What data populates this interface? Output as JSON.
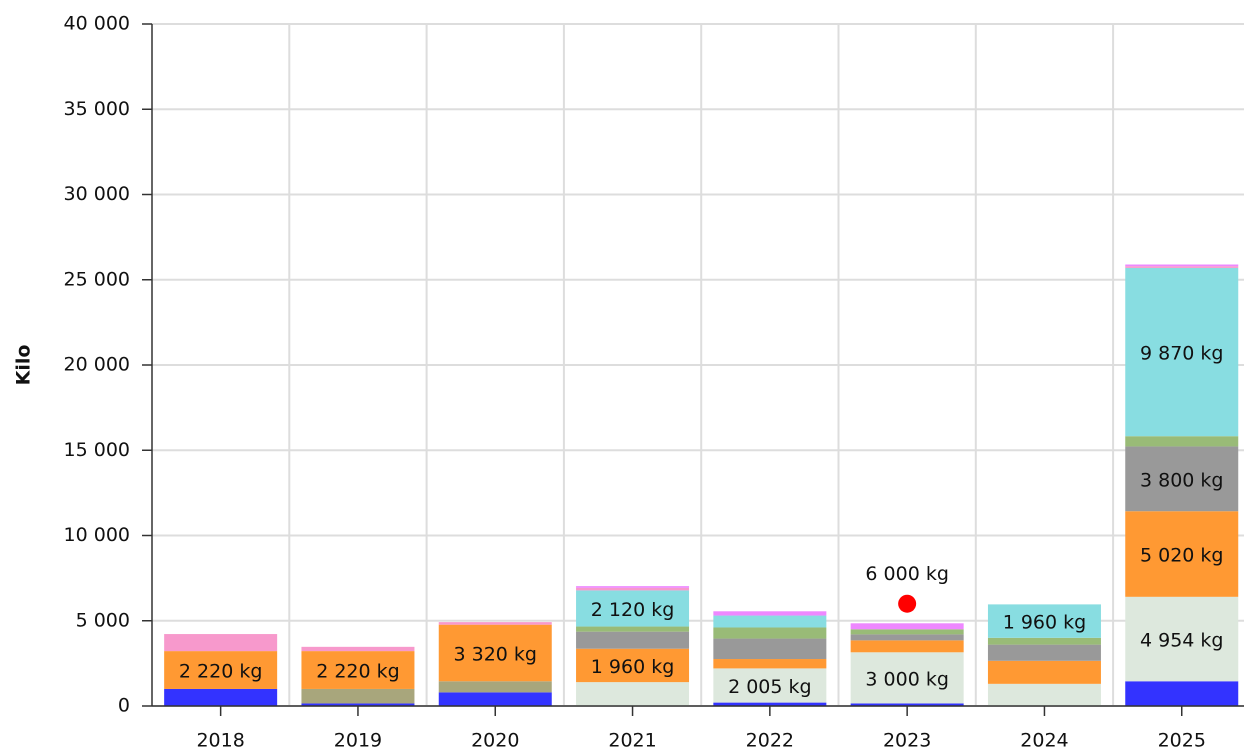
{
  "chart_data": {
    "type": "stacked-bar",
    "y_label": "Kilo",
    "categories": [
      "2018",
      "2019",
      "2020",
      "2021",
      "2022",
      "2023",
      "2024",
      "2025"
    ],
    "ylim": [
      0,
      40000
    ],
    "yticks": [
      0,
      {
        "value": 5000,
        "label": "5 000"
      },
      {
        "value": 10000,
        "label": "10 000"
      },
      {
        "value": 15000,
        "label": "15 000"
      },
      {
        "value": 20000,
        "label": "20 000"
      },
      {
        "value": 25000,
        "label": "25 000"
      },
      {
        "value": 30000,
        "label": "30 000"
      },
      {
        "value": 35000,
        "label": "35 000"
      },
      {
        "value": 40000,
        "label": "40 000"
      }
    ],
    "grid": true,
    "series": [
      {
        "color": "#3333ff",
        "values": [
          1000,
          150,
          800,
          0,
          200,
          150,
          0,
          1450
        ],
        "value_labels": [
          null,
          null,
          null,
          null,
          null,
          null,
          null,
          null
        ]
      },
      {
        "color": "#dde8dd",
        "values": [
          0,
          0,
          0,
          1400,
          2005,
          3000,
          1300,
          4954
        ],
        "value_labels": [
          null,
          null,
          null,
          null,
          "2 005 kg",
          "3 000 kg",
          null,
          "4 954 kg"
        ]
      },
      {
        "color": "#a8a67c",
        "values": [
          0,
          850,
          650,
          0,
          0,
          0,
          0,
          0
        ],
        "value_labels": [
          null,
          null,
          null,
          null,
          null,
          null,
          null,
          null
        ]
      },
      {
        "color": "#ff9933",
        "values": [
          2220,
          2220,
          3320,
          1960,
          550,
          700,
          1350,
          5020
        ],
        "value_labels": [
          "2 220 kg",
          "2 220 kg",
          "3 320 kg",
          "1 960 kg",
          null,
          null,
          null,
          "5 020 kg"
        ]
      },
      {
        "color": "#999999",
        "values": [
          0,
          0,
          0,
          1000,
          1200,
          350,
          950,
          3800
        ],
        "value_labels": [
          null,
          null,
          null,
          null,
          null,
          null,
          null,
          "3 800 kg"
        ]
      },
      {
        "color": "#99bb77",
        "values": [
          0,
          0,
          0,
          300,
          650,
          300,
          400,
          600
        ],
        "value_labels": [
          null,
          null,
          null,
          null,
          null,
          null,
          null,
          null
        ]
      },
      {
        "color": "#88dde1",
        "values": [
          0,
          0,
          0,
          2120,
          700,
          0,
          1960,
          9870
        ],
        "value_labels": [
          null,
          null,
          null,
          "2 120 kg",
          null,
          null,
          "1 960 kg",
          "9 870 kg"
        ]
      },
      {
        "color": "#f799cc",
        "values": [
          1000,
          250,
          150,
          150,
          0,
          0,
          0,
          100
        ],
        "value_labels": [
          null,
          null,
          null,
          null,
          null,
          null,
          null,
          null
        ]
      },
      {
        "color": "#ee88ff",
        "values": [
          0,
          0,
          0,
          100,
          250,
          350,
          0,
          100
        ],
        "value_labels": [
          null,
          null,
          null,
          null,
          null,
          null,
          null,
          null
        ]
      }
    ],
    "markers": {
      "color": "#ff0000",
      "values": [
        null,
        null,
        null,
        null,
        null,
        6000,
        null,
        null
      ],
      "value_labels": [
        null,
        null,
        null,
        null,
        null,
        "6 000 kg",
        null,
        null
      ]
    }
  }
}
